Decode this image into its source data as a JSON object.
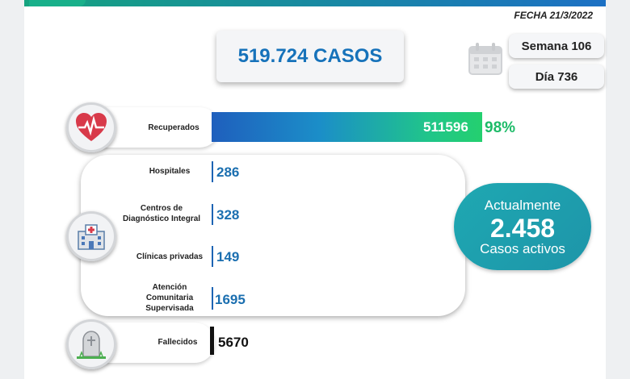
{
  "header": {
    "date": "FECHA 21/3/2022"
  },
  "total_cases": "519.724 CASOS",
  "week": "Semana 106",
  "day": "Día 736",
  "recovered": {
    "label": "Recuperados",
    "value": "511596",
    "percent": "98%",
    "fraction": 0.98
  },
  "hospitalization": [
    {
      "label": "Hospitales",
      "value": "286"
    },
    {
      "label": "Centros de\nDiagnóstico Integral",
      "value": "328"
    },
    {
      "label": "Clínicas privadas",
      "value": "149"
    },
    {
      "label": "Atención\nComunitaria\nSupervisada",
      "value": "1695"
    }
  ],
  "active": {
    "line1": "Actualmente",
    "count": "2.458",
    "line3": "Casos activos"
  },
  "deaths": {
    "label": "Fallecidos",
    "value": "5670"
  },
  "icons": {
    "recovered": "heart-pulse-icon",
    "hospital": "hospital-icon",
    "deaths": "tombstone-icon",
    "calendar": "calendar-icon"
  },
  "colors": {
    "brand_blue": "#1672ba",
    "green": "#1dbb68",
    "teal": "#1fa8b2"
  }
}
